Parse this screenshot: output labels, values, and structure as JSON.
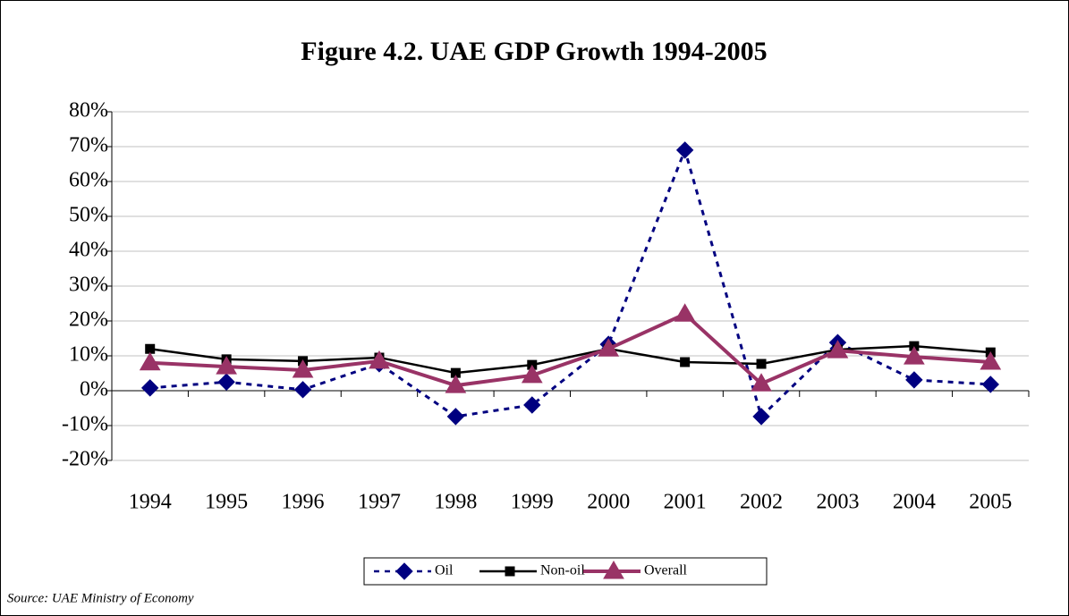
{
  "chart_data": {
    "type": "line",
    "title": "Figure  4.2. UAE GDP Growth 1994-2005",
    "source": "Source: UAE Ministry of Economy",
    "categories": [
      "1994",
      "1995",
      "1996",
      "1997",
      "1998",
      "1999",
      "2000",
      "2001",
      "2002",
      "2003",
      "2004",
      "2005"
    ],
    "series": [
      {
        "name": "Oil",
        "color": "#000080",
        "marker": "diamond",
        "dash": true,
        "values": [
          0.8,
          2.5,
          0.3,
          7.7,
          -7.4,
          -4.1,
          13.3,
          69,
          -7.4,
          13.8,
          3.1,
          1.8
        ]
      },
      {
        "name": "Non-oil",
        "color": "#000000",
        "marker": "square",
        "dash": false,
        "values": [
          12,
          9,
          8.5,
          9.5,
          5.1,
          7.4,
          12,
          8.2,
          7.7,
          11.8,
          12.8,
          11
        ]
      },
      {
        "name": "Overall",
        "color": "#993366",
        "marker": "triangle",
        "dash": false,
        "values": [
          8,
          6.9,
          5.9,
          8.5,
          1.5,
          4.4,
          12,
          22,
          2,
          11.5,
          9.7,
          8.2
        ]
      }
    ],
    "ylim": [
      -20,
      80
    ],
    "yticks": [
      {
        "value": -20,
        "label": "-20%"
      },
      {
        "value": -10,
        "label": "-10%"
      },
      {
        "value": 0,
        "label": "0%"
      },
      {
        "value": 10,
        "label": "10%"
      },
      {
        "value": 20,
        "label": "20%"
      },
      {
        "value": 30,
        "label": "30%"
      },
      {
        "value": 40,
        "label": "40%"
      },
      {
        "value": 50,
        "label": "50%"
      },
      {
        "value": 60,
        "label": "60%"
      },
      {
        "value": 70,
        "label": "70%"
      },
      {
        "value": 80,
        "label": "80%"
      }
    ],
    "grid": true,
    "legend": "bottom"
  }
}
